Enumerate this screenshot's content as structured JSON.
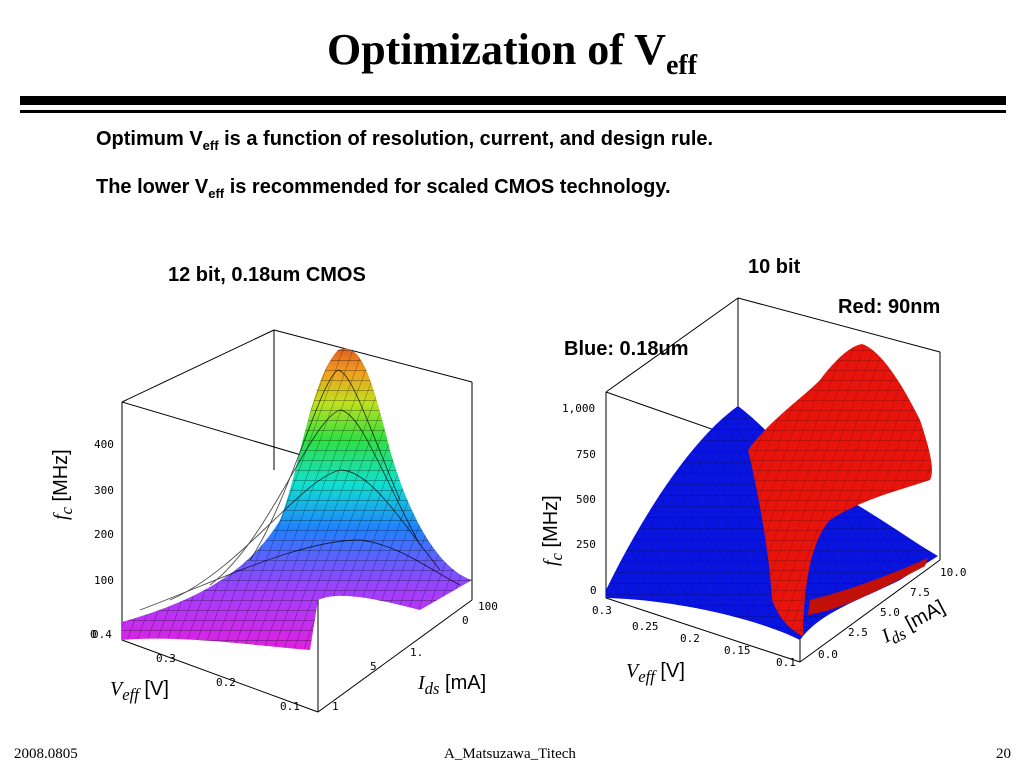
{
  "slide": {
    "title_main": "Optimization of V",
    "title_sub": "eff",
    "bullets": [
      {
        "pre": "Optimum V",
        "sub": "eff",
        "post": " is a function of resolution, current, and design rule."
      },
      {
        "pre": "The lower V",
        "sub": "eff",
        "post": " is recommended for scaled CMOS technology."
      }
    ]
  },
  "plot_left": {
    "label": "12 bit, 0.18um CMOS",
    "z_ticks": [
      "0",
      "100",
      "200",
      "300",
      "400"
    ],
    "v_ticks": [
      "0.4",
      "0.3",
      "0.2",
      "0.1"
    ],
    "i_ticks": [
      "1",
      "5",
      "1.",
      "0",
      "100"
    ],
    "z_axis": {
      "sym": "f",
      "sub": "c",
      "unit": " [MHz]"
    },
    "v_axis": {
      "sym": "V",
      "sub": "eff",
      "unit": " [V]"
    },
    "i_axis": {
      "sym": "I",
      "sub": "ds",
      "unit": " [mA]"
    }
  },
  "plot_right": {
    "label": "10 bit",
    "legend_red": "Red: 90nm",
    "legend_blue": "Blue: 0.18um",
    "z_ticks": [
      "0",
      "250",
      "500",
      "750",
      "1,000"
    ],
    "v_ticks": [
      "0.3",
      "0.25",
      "0.2",
      "0.15",
      "0.1"
    ],
    "i_ticks": [
      "0.0",
      "2.5",
      "5.0",
      "7.5",
      "10.0"
    ],
    "z_axis": {
      "sym": "f",
      "sub": "c",
      "unit": " [MHz]"
    },
    "v_axis": {
      "sym": "V",
      "sub": "eff",
      "unit": " [V]"
    },
    "i_axis": {
      "sym": "I",
      "sub": "ds",
      "unit": " [mA]"
    }
  },
  "footer": {
    "date": "2008.0805",
    "author": "A_Matsuzawa_Titech",
    "page": "20"
  },
  "colors": {
    "red_surface": "#e8140c",
    "blue_surface": "#0a14e0"
  }
}
